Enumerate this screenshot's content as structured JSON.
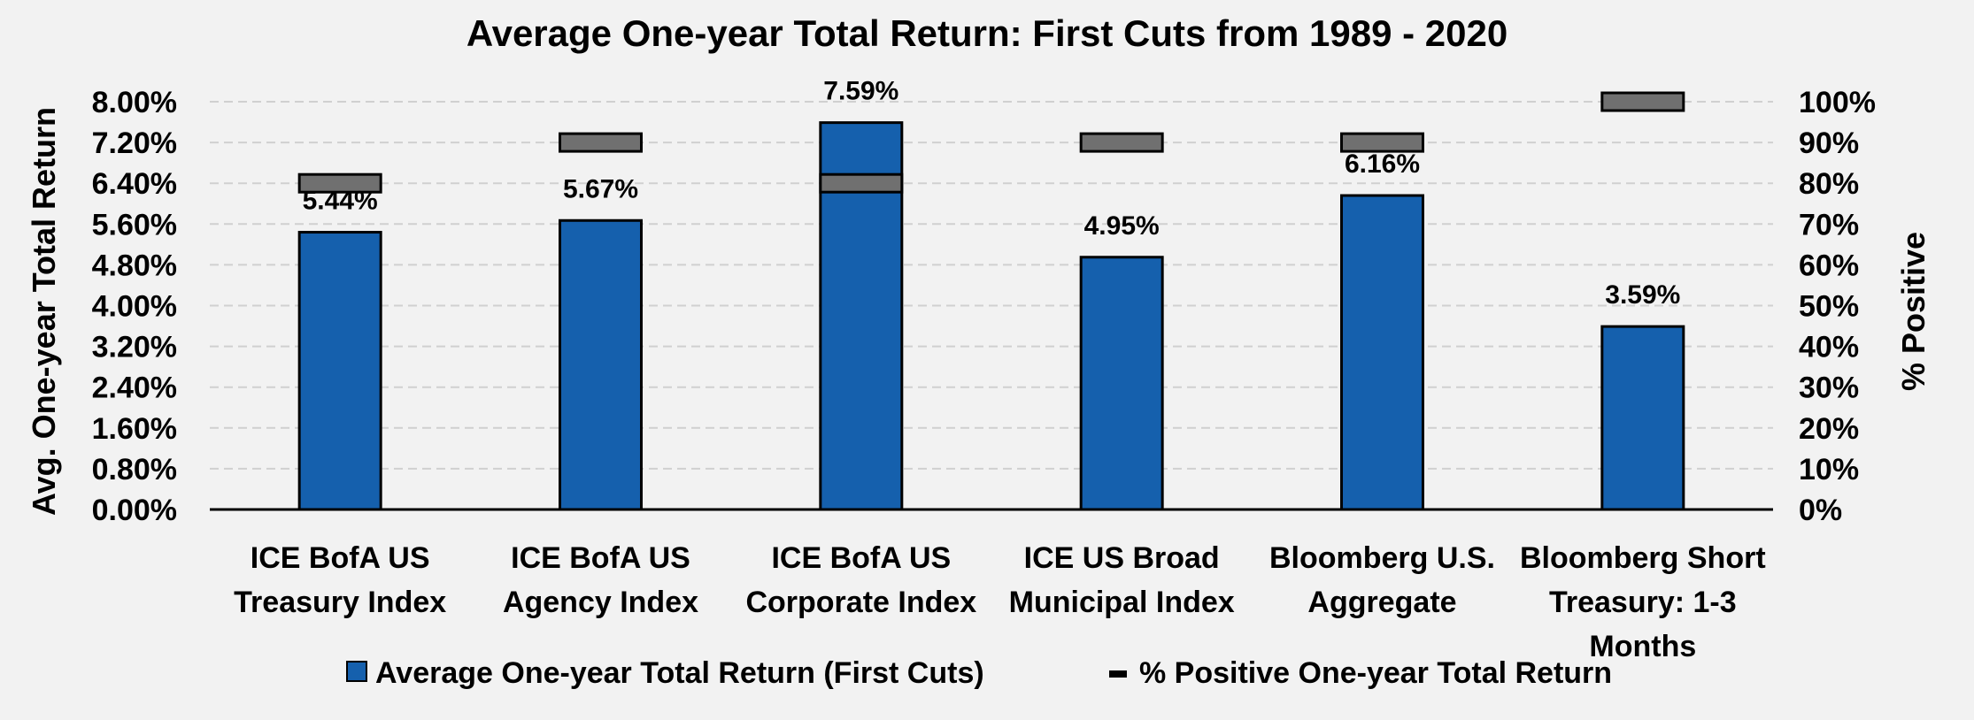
{
  "chart_data": {
    "type": "bar",
    "title": "Average One-year Total Return: First Cuts from 1989 - 2020",
    "ylabel": "Avg. One-year Total Return",
    "y2label": "% Positive",
    "ylim": [
      0,
      8.0
    ],
    "y2lim": [
      0,
      100
    ],
    "yticks": [
      "0.00%",
      "0.80%",
      "1.60%",
      "2.40%",
      "3.20%",
      "4.00%",
      "4.80%",
      "5.60%",
      "6.40%",
      "7.20%",
      "8.00%"
    ],
    "y2ticks": [
      "0%",
      "10%",
      "20%",
      "30%",
      "40%",
      "50%",
      "60%",
      "70%",
      "80%",
      "90%",
      "100%"
    ],
    "grid": true,
    "legend_position": "bottom",
    "categories": [
      [
        "ICE BofA US",
        "Treasury Index"
      ],
      [
        "ICE BofA US",
        "Agency Index"
      ],
      [
        "ICE BofA US",
        "Corporate Index"
      ],
      [
        "ICE US Broad",
        "Municipal Index"
      ],
      [
        "Bloomberg U.S.",
        "Aggregate"
      ],
      [
        "Bloomberg Short",
        "Treasury: 1-3",
        "Months"
      ]
    ],
    "series": [
      {
        "name": "Average One-year Total Return (First Cuts)",
        "type": "bar",
        "axis": "left",
        "color": "#1560ad",
        "values": [
          5.44,
          5.67,
          7.59,
          4.95,
          6.16,
          3.59
        ],
        "labels": [
          "5.44%",
          "5.67%",
          "7.59%",
          "4.95%",
          "6.16%",
          "3.59%"
        ]
      },
      {
        "name": "% Positive One-year Total Return",
        "type": "marker",
        "axis": "right",
        "color": "#707070",
        "values": [
          80,
          90,
          80,
          90,
          90,
          100
        ]
      }
    ]
  }
}
